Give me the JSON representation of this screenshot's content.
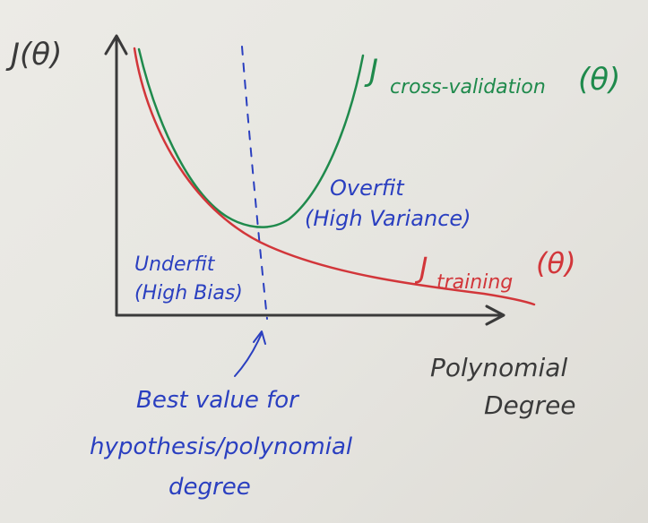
{
  "axes": {
    "y_label": "J(θ)",
    "x_label_line1": "Polynomial",
    "x_label_line2": "Degree"
  },
  "curves": {
    "cross_validation": {
      "label_main": "J",
      "label_sub": "cross-validation",
      "label_arg": "(θ)",
      "color": "#1f8a4c"
    },
    "training": {
      "label_main": "J",
      "label_sub": "training",
      "label_arg": "(θ)",
      "color": "#d2363a"
    }
  },
  "regions": {
    "overfit_line1": "Overfit",
    "overfit_line2": "(High Variance)",
    "underfit_line1": "Underfit",
    "underfit_line2": "(High Bias)"
  },
  "annotation": {
    "line1": "Best value for",
    "line2": "hypothesis/polynomial",
    "line3": "degree",
    "color": "#2a3fc0"
  },
  "colors": {
    "ink_black": "#3a3a3a",
    "ink_blue": "#2a3fc0"
  }
}
